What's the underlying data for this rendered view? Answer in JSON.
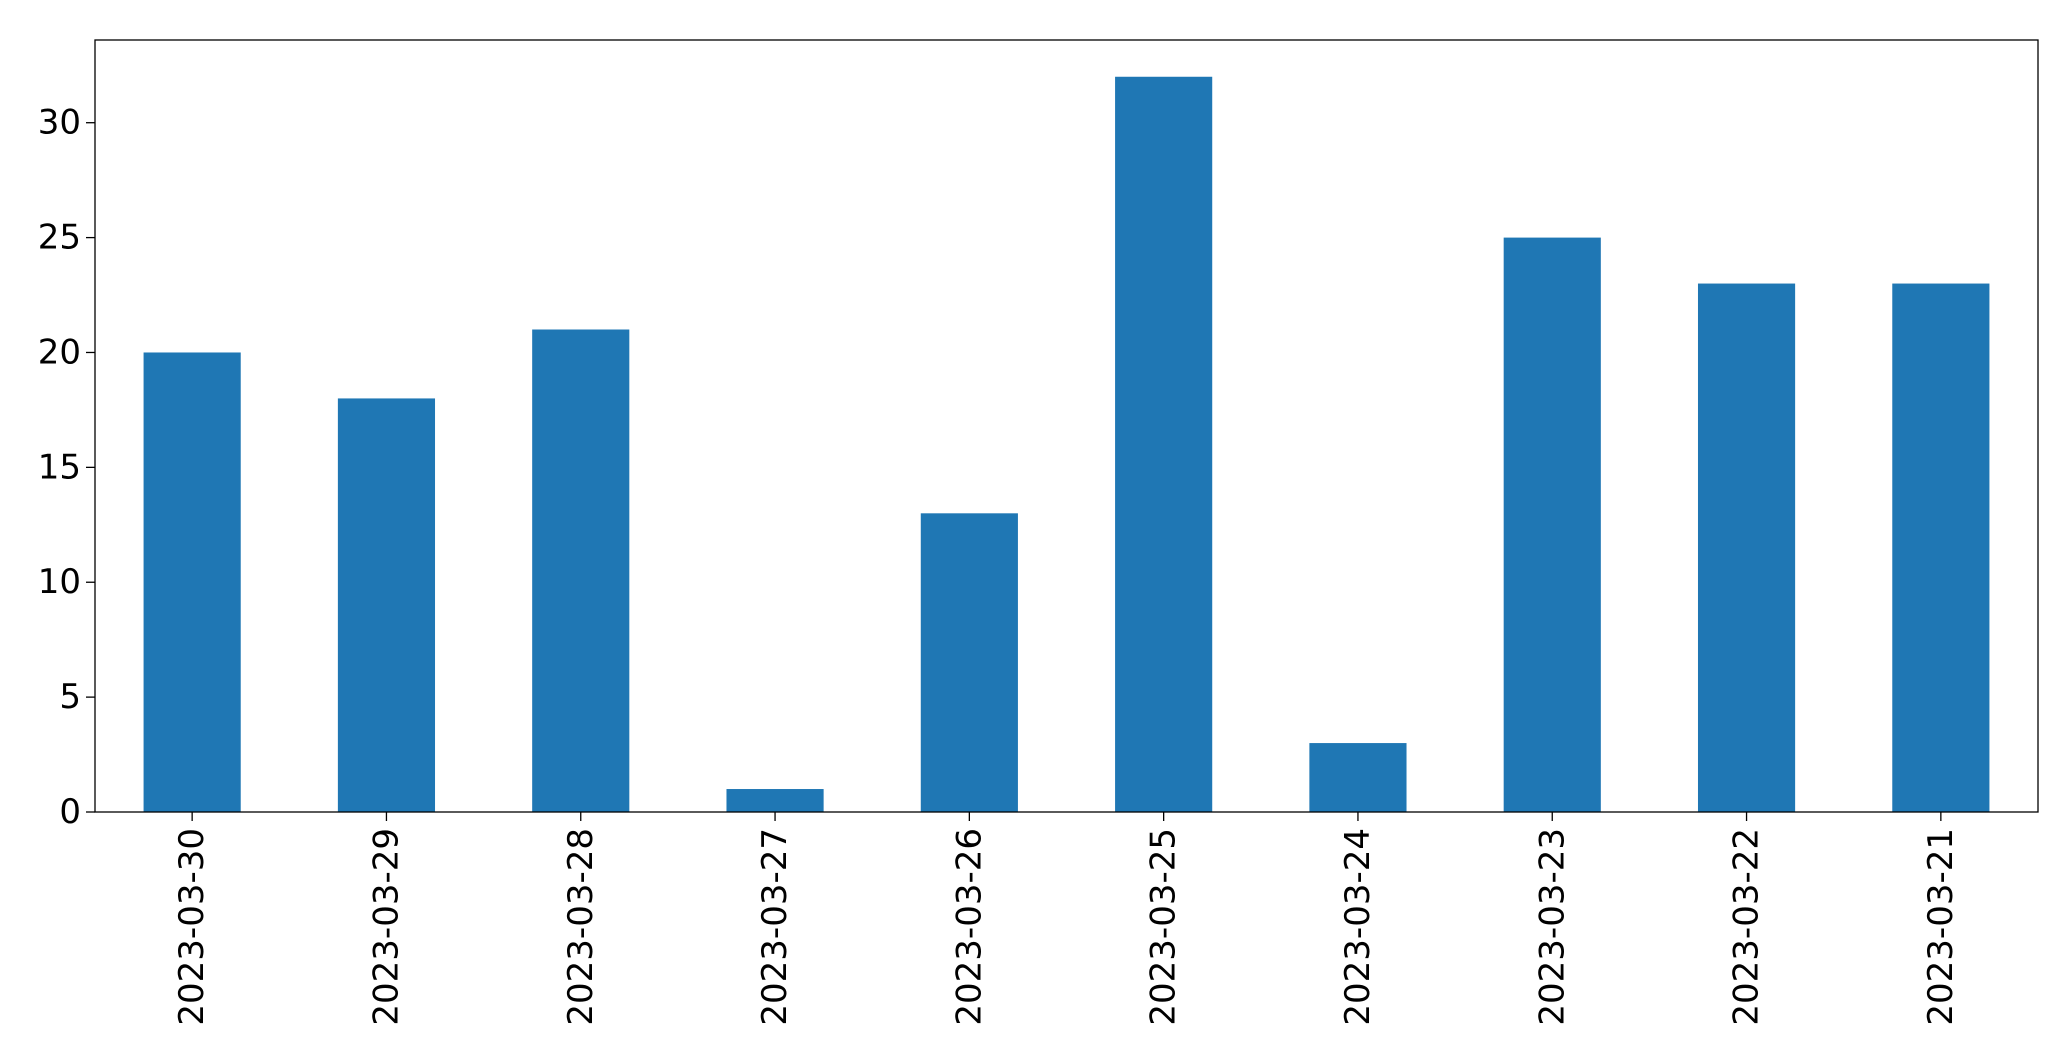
{
  "chart_data": {
    "type": "bar",
    "title": "",
    "xlabel": "",
    "ylabel": "",
    "categories": [
      "2023-03-30",
      "2023-03-29",
      "2023-03-28",
      "2023-03-27",
      "2023-03-26",
      "2023-03-25",
      "2023-03-24",
      "2023-03-23",
      "2023-03-22",
      "2023-03-21"
    ],
    "values": [
      20,
      18,
      21,
      1,
      13,
      32,
      3,
      25,
      23,
      23
    ],
    "ylim": [
      0,
      33.6
    ],
    "yticks": [
      0,
      5,
      10,
      15,
      20,
      25,
      30
    ],
    "bar_color": "#1f77b4",
    "grid": false,
    "legend": "none",
    "xtick_rotation": "vertical"
  }
}
